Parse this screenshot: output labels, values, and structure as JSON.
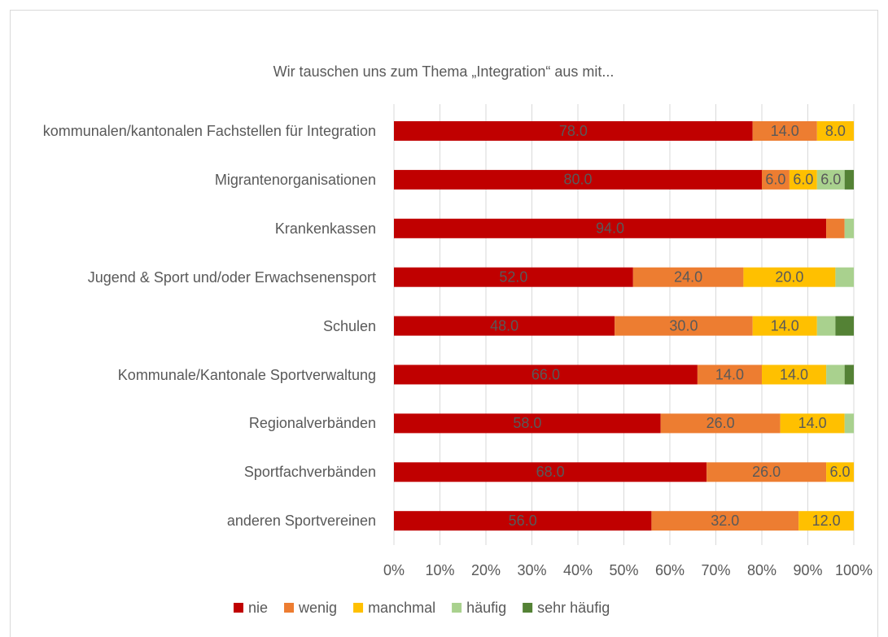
{
  "chart_data": {
    "type": "stacked_bar_horizontal",
    "title": "Wir tauschen uns zum Thema „Integration“ aus mit...",
    "categories": [
      "kommunalen/kantonalen Fachstellen für Integration",
      "Migrantenorganisationen",
      "Krankenkassen",
      "Jugend & Sport und/oder Erwachsenensport",
      "Schulen",
      "Kommunale/Kantonale Sportverwaltung",
      "Regionalverbänden",
      "Sportfachverbänden",
      "anderen Sportvereinen"
    ],
    "series": [
      {
        "name": "nie",
        "color": "#c00000",
        "values": [
          78,
          80,
          94,
          52,
          48,
          66,
          58,
          68,
          56
        ],
        "value_labels": [
          "78.0",
          "80.0",
          "94.0",
          "52.0",
          "48.0",
          "66.0",
          "58.0",
          "68.0",
          "56.0"
        ]
      },
      {
        "name": "wenig",
        "color": "#ed7d31",
        "values": [
          14,
          6,
          4,
          24,
          30,
          14,
          26,
          26,
          32
        ],
        "value_labels": [
          "14.0",
          "6.0",
          null,
          "24.0",
          "30.0",
          "14.0",
          "26.0",
          "26.0",
          "32.0"
        ]
      },
      {
        "name": "manchmal",
        "color": "#ffc000",
        "values": [
          8,
          6,
          0,
          20,
          14,
          14,
          14,
          6,
          12
        ],
        "value_labels": [
          "8.0",
          "6.0",
          null,
          "20.0",
          "14.0",
          "14.0",
          "14.0",
          "6.0",
          "12.0"
        ]
      },
      {
        "name": "häufig",
        "color": "#a9d18e",
        "values": [
          0,
          6,
          2,
          4,
          4,
          4,
          2,
          0,
          0
        ],
        "value_labels": [
          null,
          "6.0",
          null,
          null,
          null,
          null,
          null,
          null,
          null
        ]
      },
      {
        "name": "sehr häufig",
        "color": "#548235",
        "values": [
          0,
          2,
          0,
          0,
          4,
          2,
          0,
          0,
          0
        ],
        "value_labels": [
          null,
          null,
          null,
          null,
          null,
          null,
          null,
          null,
          null
        ]
      }
    ],
    "xlim": [
      0,
      100
    ],
    "xticks": [
      {
        "value": 0,
        "label": "0%"
      },
      {
        "value": 10,
        "label": "10%"
      },
      {
        "value": 20,
        "label": "20%"
      },
      {
        "value": 30,
        "label": "30%"
      },
      {
        "value": 40,
        "label": "40%"
      },
      {
        "value": 50,
        "label": "50%"
      },
      {
        "value": 60,
        "label": "60%"
      },
      {
        "value": 70,
        "label": "70%"
      },
      {
        "value": 80,
        "label": "80%"
      },
      {
        "value": 90,
        "label": "90%"
      },
      {
        "value": 100,
        "label": "100%"
      }
    ],
    "grid": true,
    "legend": "bottom"
  }
}
